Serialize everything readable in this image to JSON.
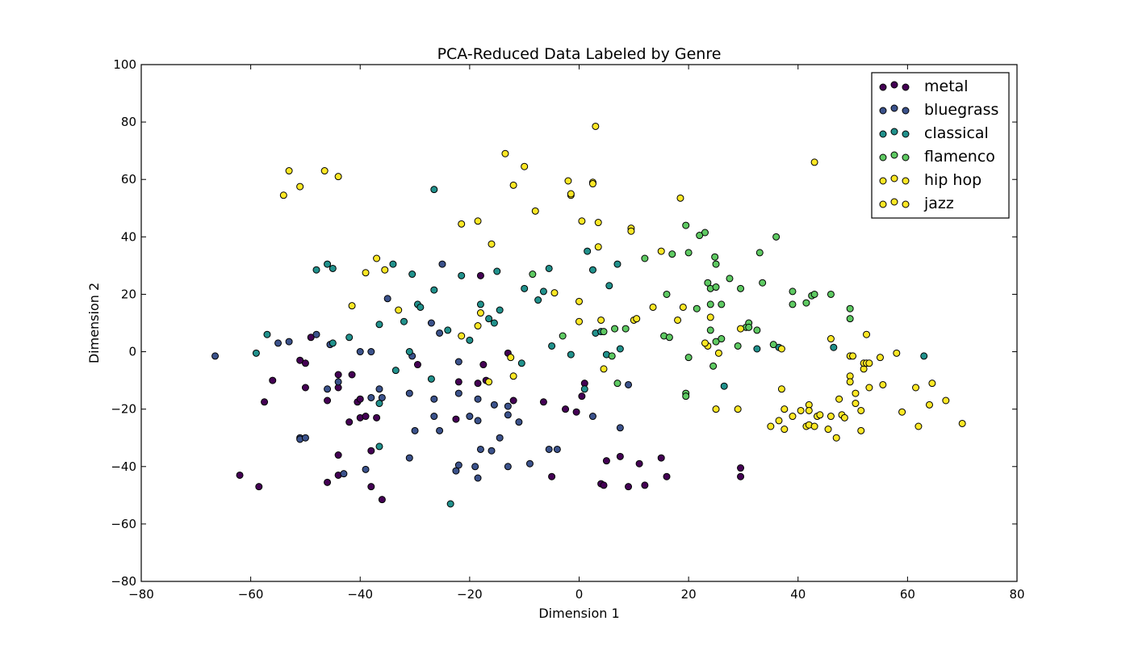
{
  "chart_data": {
    "type": "scatter",
    "title": "PCA-Reduced Data Labeled by Genre",
    "xlabel": "Dimension 1",
    "ylabel": "Dimension 2",
    "xlim": [
      -80,
      80
    ],
    "ylim": [
      -80,
      100
    ],
    "xticks": [
      -80,
      -60,
      -40,
      -20,
      0,
      20,
      40,
      60,
      80
    ],
    "yticks": [
      -80,
      -60,
      -40,
      -20,
      0,
      20,
      40,
      60,
      80,
      100
    ],
    "grid": false,
    "legend_position": "top-right",
    "series": [
      {
        "name": "metal",
        "color": "#440154",
        "points": [
          [
            -62,
            -43
          ],
          [
            -58.5,
            -47
          ],
          [
            -57.5,
            -17.5
          ],
          [
            -56,
            -10
          ],
          [
            -51,
            -3
          ],
          [
            -50,
            -4
          ],
          [
            -50,
            -12.5
          ],
          [
            -49,
            5
          ],
          [
            -46,
            -17
          ],
          [
            -46,
            -45.5
          ],
          [
            -44,
            -8
          ],
          [
            -44,
            -12.5
          ],
          [
            -44,
            -36
          ],
          [
            -44,
            -43
          ],
          [
            -42,
            -24.5
          ],
          [
            -41.5,
            -8
          ],
          [
            -40.5,
            -17.5
          ],
          [
            -40,
            -16.5
          ],
          [
            -40,
            -23
          ],
          [
            -39,
            -22.5
          ],
          [
            -38,
            -34.5
          ],
          [
            -38,
            -47
          ],
          [
            -37,
            -23
          ],
          [
            -36,
            -51.5
          ],
          [
            -29.5,
            -4.5
          ],
          [
            -22,
            -10.5
          ],
          [
            -22.5,
            -23.5
          ],
          [
            -18.5,
            -11
          ],
          [
            -17.5,
            -4.5
          ],
          [
            -17,
            -10
          ],
          [
            -13,
            -0.5
          ],
          [
            -12,
            -17
          ],
          [
            -6.5,
            -17.5
          ],
          [
            -5,
            -43.5
          ],
          [
            -2.5,
            -20
          ],
          [
            -0.5,
            -21
          ],
          [
            0.5,
            -15.5
          ],
          [
            1,
            -11
          ],
          [
            4,
            -46
          ],
          [
            4.5,
            -46.5
          ],
          [
            5,
            -38
          ],
          [
            7.5,
            -36.5
          ],
          [
            9,
            -47
          ],
          [
            11,
            -39
          ],
          [
            12,
            -46.5
          ],
          [
            15,
            -37
          ],
          [
            16,
            -43.5
          ],
          [
            29.5,
            -40.5
          ],
          [
            29.5,
            -43.5
          ],
          [
            -18,
            26.5
          ]
        ]
      },
      {
        "name": "bluegrass",
        "color": "#3b528b",
        "points": [
          [
            -66.5,
            -1.5
          ],
          [
            -55,
            3
          ],
          [
            -53,
            3.5
          ],
          [
            -51,
            -30
          ],
          [
            -51,
            -30.5
          ],
          [
            -50,
            -30
          ],
          [
            -48,
            6
          ],
          [
            -46,
            -13
          ],
          [
            -45.5,
            2.5
          ],
          [
            -44,
            -10.5
          ],
          [
            -43,
            -42.5
          ],
          [
            -40,
            0
          ],
          [
            -39,
            -41
          ],
          [
            -38,
            0
          ],
          [
            -38,
            -16
          ],
          [
            -36.5,
            -13
          ],
          [
            -36,
            -16
          ],
          [
            -35,
            18.5
          ],
          [
            -31,
            -14.5
          ],
          [
            -31,
            -37
          ],
          [
            -30.5,
            -1.5
          ],
          [
            -30,
            -27.5
          ],
          [
            -27,
            10
          ],
          [
            -26.5,
            -16.5
          ],
          [
            -26.5,
            -22.5
          ],
          [
            -25.5,
            -27.5
          ],
          [
            -25.5,
            6.5
          ],
          [
            -25,
            30.5
          ],
          [
            -22,
            -3.5
          ],
          [
            -22,
            -14.5
          ],
          [
            -22.5,
            -41.5
          ],
          [
            -22,
            -39.5
          ],
          [
            -20,
            -22.5
          ],
          [
            -19,
            -40
          ],
          [
            -18.5,
            -44
          ],
          [
            -18.5,
            -16.5
          ],
          [
            -18.5,
            -24
          ],
          [
            -18,
            -34
          ],
          [
            -16,
            -34.5
          ],
          [
            -15.5,
            -18.5
          ],
          [
            -14.5,
            -30
          ],
          [
            -13,
            -22
          ],
          [
            -13,
            -40
          ],
          [
            -13,
            -19
          ],
          [
            -11,
            -24.5
          ],
          [
            -9,
            -39
          ],
          [
            -5.5,
            -34
          ],
          [
            -4,
            -34
          ],
          [
            2.5,
            -22.5
          ],
          [
            7.5,
            -26.5
          ],
          [
            9,
            -11.5
          ]
        ]
      },
      {
        "name": "classical",
        "color": "#21918c",
        "points": [
          [
            -59,
            -0.5
          ],
          [
            -57,
            6
          ],
          [
            -48,
            28.5
          ],
          [
            -46,
            30.5
          ],
          [
            -45,
            29
          ],
          [
            -45,
            3
          ],
          [
            -42,
            5
          ],
          [
            -36.5,
            9.5
          ],
          [
            -36.5,
            -18
          ],
          [
            -36.5,
            -33
          ],
          [
            -34,
            30.5
          ],
          [
            -33.5,
            -6.5
          ],
          [
            -32,
            10.5
          ],
          [
            -31,
            0
          ],
          [
            -30.5,
            27
          ],
          [
            -29.5,
            16.5
          ],
          [
            -29,
            15.5
          ],
          [
            -27,
            -9.5
          ],
          [
            -26.5,
            56.5
          ],
          [
            -26.5,
            21.5
          ],
          [
            -24,
            7.5
          ],
          [
            -23.5,
            -53
          ],
          [
            -21.5,
            26.5
          ],
          [
            -20,
            4
          ],
          [
            -18,
            16.5
          ],
          [
            -16.5,
            11.5
          ],
          [
            -15.5,
            10
          ],
          [
            -15,
            28
          ],
          [
            -14.5,
            14.5
          ],
          [
            -10.5,
            -4
          ],
          [
            -10,
            22
          ],
          [
            -7.5,
            18
          ],
          [
            -6.5,
            21
          ],
          [
            -5.5,
            29
          ],
          [
            -5,
            2
          ],
          [
            -1.5,
            -1
          ],
          [
            1,
            -13
          ],
          [
            1.5,
            35
          ],
          [
            2.5,
            28.5
          ],
          [
            3,
            6.5
          ],
          [
            4,
            7
          ],
          [
            5,
            -1
          ],
          [
            5.5,
            23
          ],
          [
            7,
            30.5
          ],
          [
            7.5,
            1
          ],
          [
            26.5,
            -12
          ],
          [
            32.5,
            1
          ],
          [
            36.5,
            1.5
          ],
          [
            46.5,
            1.5
          ],
          [
            63,
            -1.5
          ]
        ]
      },
      {
        "name": "flamenco",
        "color": "#5ec962",
        "points": [
          [
            -8.5,
            27
          ],
          [
            -3,
            5.5
          ],
          [
            4.5,
            7
          ],
          [
            6,
            -1.5
          ],
          [
            6.5,
            8
          ],
          [
            7,
            -11
          ],
          [
            8.5,
            8
          ],
          [
            12,
            32.5
          ],
          [
            15.5,
            5.5
          ],
          [
            16,
            20
          ],
          [
            16.5,
            5
          ],
          [
            17,
            34
          ],
          [
            19.5,
            -14.5
          ],
          [
            19.5,
            -15.5
          ],
          [
            19.5,
            44
          ],
          [
            20,
            -2
          ],
          [
            20,
            34.5
          ],
          [
            21.5,
            15
          ],
          [
            23,
            41.5
          ],
          [
            23.5,
            24
          ],
          [
            24,
            22
          ],
          [
            24,
            16.5
          ],
          [
            24,
            7.5
          ],
          [
            24.5,
            -5
          ],
          [
            25,
            3.5
          ],
          [
            25,
            22.5
          ],
          [
            24.8,
            33
          ],
          [
            25,
            30.5
          ],
          [
            26,
            16.5
          ],
          [
            26,
            4.5
          ],
          [
            27.5,
            25.5
          ],
          [
            29,
            2
          ],
          [
            29.5,
            22
          ],
          [
            30.5,
            8.5
          ],
          [
            31,
            10
          ],
          [
            31,
            8.5
          ],
          [
            32.5,
            7.5
          ],
          [
            33,
            34.5
          ],
          [
            33.5,
            24
          ],
          [
            35.5,
            2.5
          ],
          [
            36,
            40
          ],
          [
            39,
            16.5
          ],
          [
            39,
            21
          ],
          [
            41.5,
            17
          ],
          [
            42.5,
            19.5
          ],
          [
            43,
            20
          ],
          [
            46,
            20
          ],
          [
            49.5,
            15
          ],
          [
            49.5,
            11.5
          ],
          [
            22,
            40.5
          ]
        ]
      },
      {
        "name": "hip hop",
        "color": "#fde725",
        "points": [
          [
            -54,
            54.5
          ],
          [
            -53,
            63
          ],
          [
            -51,
            57.5
          ],
          [
            -46.5,
            63
          ],
          [
            -44,
            61
          ],
          [
            -41.5,
            16
          ],
          [
            -39,
            27.5
          ],
          [
            -37,
            32.5
          ],
          [
            -35.5,
            28.5
          ],
          [
            -33,
            14.5
          ],
          [
            -21.5,
            5.5
          ],
          [
            -21.5,
            44.5
          ],
          [
            -18.5,
            45.5
          ],
          [
            -18.5,
            9
          ],
          [
            -18,
            13.5
          ],
          [
            -16.5,
            -10.5
          ],
          [
            -16,
            37.5
          ],
          [
            -13.5,
            69
          ],
          [
            -12.5,
            -2
          ],
          [
            -12,
            -8.5
          ],
          [
            -12,
            58
          ],
          [
            -10,
            64.5
          ],
          [
            -8,
            49
          ],
          [
            -4.5,
            20.5
          ],
          [
            -2,
            59.5
          ],
          [
            -1.5,
            54.5
          ],
          [
            -1.5,
            55
          ],
          [
            0,
            17.5
          ],
          [
            0,
            10.5
          ],
          [
            0.5,
            45.5
          ],
          [
            2.5,
            59
          ],
          [
            2.5,
            58.5
          ],
          [
            3,
            78.5
          ],
          [
            3.5,
            45
          ],
          [
            3.5,
            36.5
          ],
          [
            4,
            11
          ],
          [
            4.5,
            -6
          ],
          [
            9.5,
            43
          ],
          [
            9.5,
            42
          ],
          [
            10,
            11
          ],
          [
            10.5,
            11.5
          ],
          [
            13.5,
            15.5
          ],
          [
            15,
            35
          ],
          [
            18,
            11
          ],
          [
            18.5,
            53.5
          ],
          [
            19,
            15.5
          ],
          [
            23.5,
            2
          ],
          [
            24,
            12
          ],
          [
            29.5,
            8
          ],
          [
            43,
            66
          ]
        ]
      },
      {
        "name": "jazz",
        "color": "#fde725",
        "points": [
          [
            23,
            3
          ],
          [
            25,
            -20
          ],
          [
            25.5,
            -0.5
          ],
          [
            29,
            -20
          ],
          [
            35,
            -26
          ],
          [
            36.5,
            -24
          ],
          [
            37,
            -13
          ],
          [
            37,
            1
          ],
          [
            37.5,
            -20
          ],
          [
            37.5,
            -27
          ],
          [
            39,
            -22.5
          ],
          [
            40.5,
            -20.5
          ],
          [
            41.5,
            -26
          ],
          [
            42,
            -18.5
          ],
          [
            42,
            -25.5
          ],
          [
            42,
            -20.5
          ],
          [
            43,
            -26
          ],
          [
            43.5,
            -22.5
          ],
          [
            44,
            -22
          ],
          [
            45.5,
            -27
          ],
          [
            46,
            -22.5
          ],
          [
            46,
            4.5
          ],
          [
            47,
            -30
          ],
          [
            47.5,
            -16.5
          ],
          [
            48,
            -22
          ],
          [
            48.5,
            -23
          ],
          [
            49.5,
            -8.5
          ],
          [
            49.5,
            -10.5
          ],
          [
            49.5,
            -1.5
          ],
          [
            50,
            -1.5
          ],
          [
            50.5,
            -14.5
          ],
          [
            50.5,
            -18
          ],
          [
            51.5,
            -20.5
          ],
          [
            51.5,
            -27.5
          ],
          [
            52,
            -6
          ],
          [
            52,
            -4
          ],
          [
            52.5,
            -4
          ],
          [
            52.5,
            6
          ],
          [
            53,
            -4
          ],
          [
            53,
            -12.5
          ],
          [
            55,
            -2
          ],
          [
            55.5,
            -11.5
          ],
          [
            58,
            -0.5
          ],
          [
            59,
            -21
          ],
          [
            61.5,
            -12.5
          ],
          [
            62,
            -26
          ],
          [
            64,
            -18.5
          ],
          [
            64.5,
            -11
          ],
          [
            67,
            -17
          ],
          [
            70,
            -25
          ]
        ]
      }
    ]
  }
}
